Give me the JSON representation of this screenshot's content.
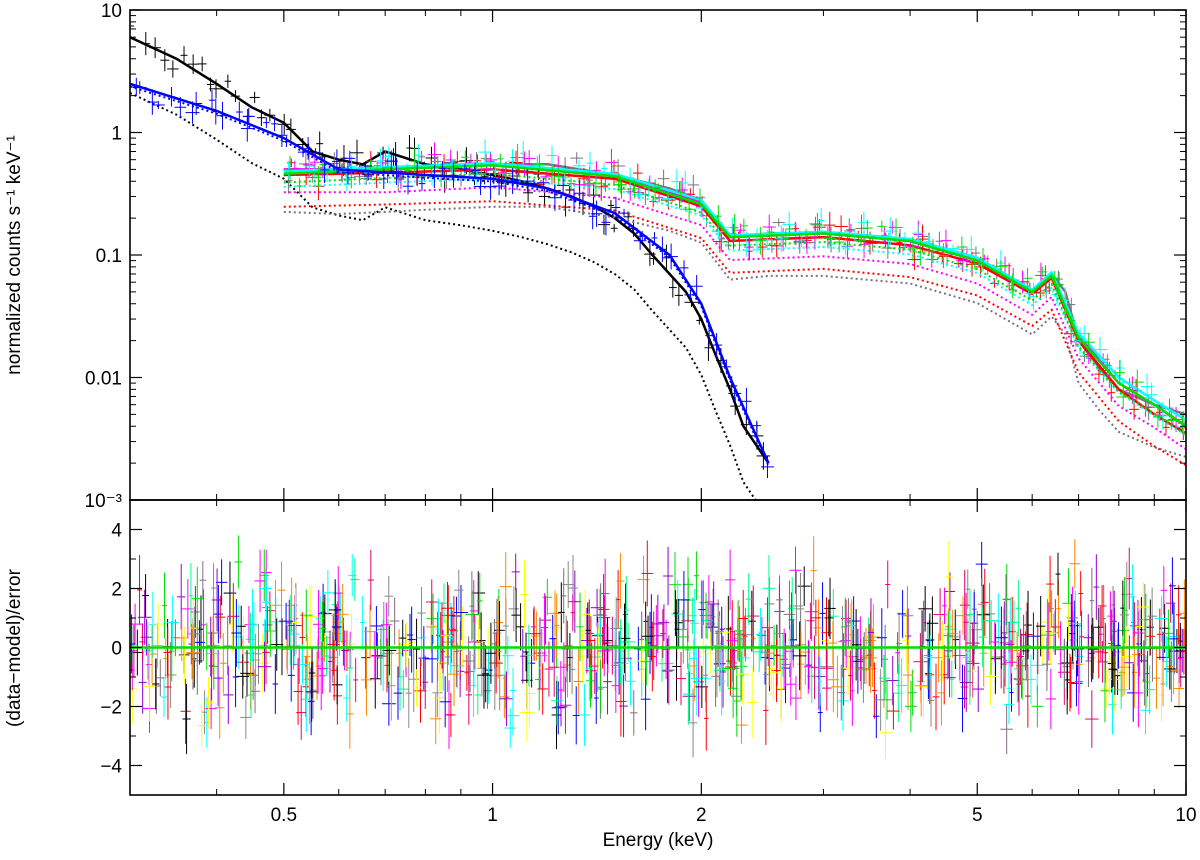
{
  "chart_data": [
    {
      "type": "line",
      "panel": "top",
      "xlabel": "",
      "ylabel": "normalized counts s⁻¹ keV⁻¹",
      "xscale": "log",
      "yscale": "log",
      "xlim": [
        0.3,
        10
      ],
      "ylim": [
        0.001,
        10
      ],
      "x_ticks": [
        0.5,
        1,
        2,
        5,
        10
      ],
      "y_tick_labels": [
        "10",
        "1",
        "0.1",
        "0.01",
        "10⁻³"
      ],
      "y_tick_values": [
        10,
        1,
        0.1,
        0.01,
        0.001
      ],
      "grid": false,
      "series": [
        {
          "color": "#000000",
          "x": [
            0.3,
            0.35,
            0.4,
            0.45,
            0.5,
            0.55,
            0.6,
            0.65,
            0.7,
            0.8,
            0.9,
            1.0,
            1.1,
            1.2,
            1.3,
            1.4,
            1.5,
            1.6,
            1.7,
            1.8,
            1.9,
            2.0,
            2.1,
            2.2,
            2.3,
            2.5
          ],
          "y": [
            6.0,
            4.0,
            2.5,
            1.6,
            1.2,
            0.7,
            0.6,
            0.55,
            0.7,
            0.55,
            0.5,
            0.45,
            0.4,
            0.35,
            0.3,
            0.25,
            0.2,
            0.15,
            0.1,
            0.07,
            0.05,
            0.03,
            0.015,
            0.008,
            0.004,
            0.002
          ]
        },
        {
          "color": "#7f6f7f",
          "x": [
            0.5,
            0.6,
            0.7,
            0.8,
            1.0,
            1.2,
            1.5,
            1.8,
            2.0,
            2.2,
            2.5,
            3.0,
            4.0,
            5.0,
            6.0,
            6.4,
            6.7,
            7.0,
            7.5,
            8.0,
            9.0,
            10.0
          ],
          "y": [
            0.5,
            0.48,
            0.5,
            0.52,
            0.55,
            0.55,
            0.45,
            0.35,
            0.28,
            0.14,
            0.15,
            0.15,
            0.13,
            0.09,
            0.05,
            0.07,
            0.05,
            0.02,
            0.012,
            0.008,
            0.006,
            0.005
          ]
        },
        {
          "color": "#ff0000",
          "x": [
            0.5,
            0.7,
            1.0,
            1.5,
            2.0,
            2.2,
            3.0,
            4.0,
            5.0,
            6.0,
            6.4,
            7.0,
            8.0,
            9.0,
            10.0
          ],
          "y": [
            0.45,
            0.47,
            0.5,
            0.42,
            0.25,
            0.13,
            0.14,
            0.12,
            0.085,
            0.048,
            0.065,
            0.02,
            0.008,
            0.005,
            0.0035
          ]
        },
        {
          "color": "#ff00ff",
          "x": [
            0.5,
            0.7,
            1.0,
            1.5,
            2.0,
            2.2,
            3.0,
            4.0,
            5.0,
            6.0,
            6.4,
            7.0,
            8.0,
            9.0,
            10.0
          ],
          "y": [
            0.5,
            0.5,
            0.55,
            0.45,
            0.27,
            0.14,
            0.15,
            0.13,
            0.09,
            0.05,
            0.07,
            0.022,
            0.009,
            0.006,
            0.004
          ]
        },
        {
          "color": "#00ffff",
          "x": [
            0.5,
            0.7,
            1.0,
            1.5,
            2.0,
            2.2,
            3.0,
            4.0,
            5.0,
            6.0,
            6.4,
            7.0,
            8.0,
            9.0,
            10.0
          ],
          "y": [
            0.48,
            0.52,
            0.56,
            0.46,
            0.28,
            0.145,
            0.155,
            0.135,
            0.095,
            0.052,
            0.072,
            0.023,
            0.01,
            0.0065,
            0.0045
          ]
        },
        {
          "color": "#00dd00",
          "x": [
            0.5,
            0.7,
            1.0,
            1.5,
            2.0,
            2.2,
            3.0,
            4.0,
            5.0,
            6.0,
            6.4,
            7.0,
            8.0,
            9.0,
            10.0
          ],
          "y": [
            0.46,
            0.5,
            0.54,
            0.44,
            0.26,
            0.14,
            0.15,
            0.13,
            0.09,
            0.05,
            0.068,
            0.021,
            0.009,
            0.006,
            0.004
          ]
        },
        {
          "color": "#0000ff",
          "x": [
            0.3,
            0.4,
            0.5,
            0.6,
            0.8,
            1.0,
            1.2,
            1.5,
            1.8,
            2.0,
            2.2,
            2.5
          ],
          "y": [
            2.5,
            1.5,
            0.9,
            0.5,
            0.45,
            0.42,
            0.35,
            0.22,
            0.1,
            0.04,
            0.01,
            0.002
          ]
        }
      ]
    },
    {
      "type": "scatter",
      "panel": "bottom",
      "xlabel": "Energy (keV)",
      "ylabel": "(data−model)/error",
      "xscale": "log",
      "xlim": [
        0.3,
        10
      ],
      "ylim": [
        -5,
        5
      ],
      "x_ticks": [
        0.5,
        1,
        2,
        5,
        10
      ],
      "y_tick_labels": [
        "4",
        "2",
        "0",
        "−2",
        "−4"
      ],
      "y_tick_values": [
        4,
        2,
        0,
        -2,
        -4
      ],
      "grid": false,
      "reference_line": {
        "y": 0,
        "color": "#00dd00"
      }
    }
  ],
  "colors": {
    "frame": "#000000",
    "palette": [
      "#000000",
      "#ff0000",
      "#00dd00",
      "#0000ff",
      "#00ffff",
      "#ff00ff",
      "#ffff00",
      "#ff8800",
      "#7f6f7f",
      "#9400d3",
      "#00ff88",
      "#888888",
      "#e60073"
    ]
  }
}
